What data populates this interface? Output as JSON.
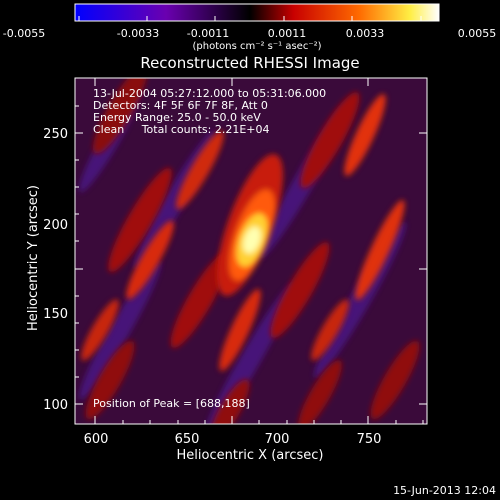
{
  "title": "Reconstructed RHESSI Image",
  "colorbar": {
    "tick_labels": [
      "-0.0055",
      "-0.0033",
      "-0.0011",
      "0.0011",
      "0.0033",
      "0.0055"
    ],
    "units": "(photons cm⁻² s⁻¹ asec⁻²)",
    "colors": [
      "#0000ff",
      "#6a00b0",
      "#000000",
      "#c80000",
      "#ff6a00",
      "#ffee44",
      "#ffffff"
    ]
  },
  "axes": {
    "xlabel": "Heliocentric X (arcsec)",
    "ylabel": "Heliocentric Y (arcsec)",
    "x_tick_labels": [
      "600",
      "650",
      "700",
      "750"
    ],
    "y_tick_labels": [
      "100",
      "150",
      "200",
      "250"
    ]
  },
  "info": {
    "time_range": "13-Jul-2004 05:27:12.000 to 05:31:06.000",
    "detectors": "Detectors: 4F 5F 6F 7F 8F, Att 0",
    "energy": "Energy Range: 25.0 - 50.0 keV",
    "clean": "Clean     Total counts: 2.21E+04",
    "peak": "Position of Peak = [688,188]"
  },
  "footer_date": "15-Jun-2013 12:04"
}
